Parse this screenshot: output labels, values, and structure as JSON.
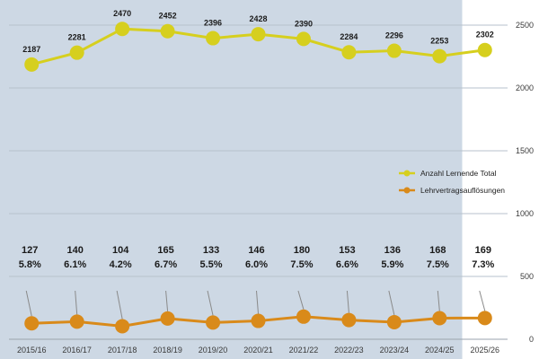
{
  "chart_data": {
    "type": "line",
    "categories": [
      "2015/16",
      "2016/17",
      "2017/18",
      "2018/19",
      "2019/20",
      "2020/21",
      "2021/22",
      "2022/23",
      "2023/24",
      "2024/25",
      "2025/26"
    ],
    "series": [
      {
        "name": "Anzahl Lernende Total",
        "color": "#d6cf1e",
        "values": [
          2187,
          2281,
          2470,
          2452,
          2396,
          2428,
          2390,
          2284,
          2296,
          2253,
          2302
        ]
      },
      {
        "name": "Lehrvertragsauflösungen",
        "color": "#d98a1a",
        "values": [
          127,
          140,
          104,
          165,
          133,
          146,
          180,
          153,
          136,
          168,
          169
        ]
      }
    ],
    "percent_labels": [
      "5.8%",
      "6.1%",
      "4.2%",
      "6.7%",
      "5.5%",
      "6.0%",
      "7.5%",
      "6.6%",
      "5.9%",
      "7.5%",
      "7.3%"
    ],
    "y_ticks": [
      "0",
      "500",
      "1000",
      "1500",
      "2000",
      "2500"
    ],
    "ylim": [
      0,
      2500
    ],
    "grid": true,
    "legend_position": "right",
    "highlighted_category": "2025/26",
    "colors": {
      "plot_bg": "#cdd8e4",
      "highlight_bg": "#ffffff",
      "gridline": "#b7c2cd"
    }
  }
}
